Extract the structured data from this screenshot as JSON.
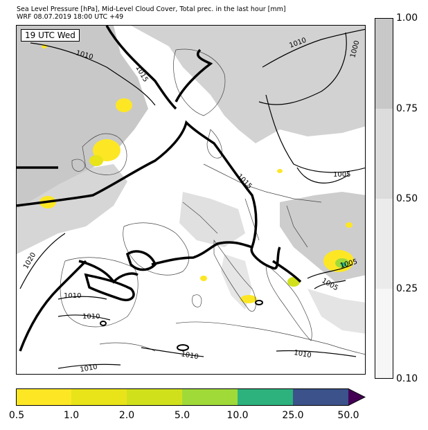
{
  "header": {
    "line1": "Sea Level Pressure [hPa], Mid-Level Cloud Cover, Total prec. in the last hour [mm]",
    "line2": "WRF 08.07.2019 18:00 UTC +49"
  },
  "map": {
    "valid_time_label": "19 UTC Wed",
    "isobar_labels": [
      "1010",
      "1015",
      "1010",
      "1000",
      "1005",
      "1015",
      "1020",
      "1010",
      "1010",
      "1005",
      "1005",
      "1010",
      "1010",
      "1010"
    ]
  },
  "cloud_cover_legend": {
    "ticks": [
      "1.00",
      "0.75",
      "0.50",
      "0.25",
      "0.10"
    ],
    "colors": [
      "#c8c8c8",
      "#dcdcdc",
      "#ebebeb",
      "#f6f6f6"
    ]
  },
  "precip_legend": {
    "ticks": [
      "0.5",
      "1.0",
      "2.0",
      "5.0",
      "10.0",
      "25.0",
      "50.0"
    ],
    "colors": [
      "#fde725",
      "#e8e419",
      "#d0e11c",
      "#a0da39",
      "#2db27d",
      "#3b528b",
      "#440154"
    ]
  }
}
